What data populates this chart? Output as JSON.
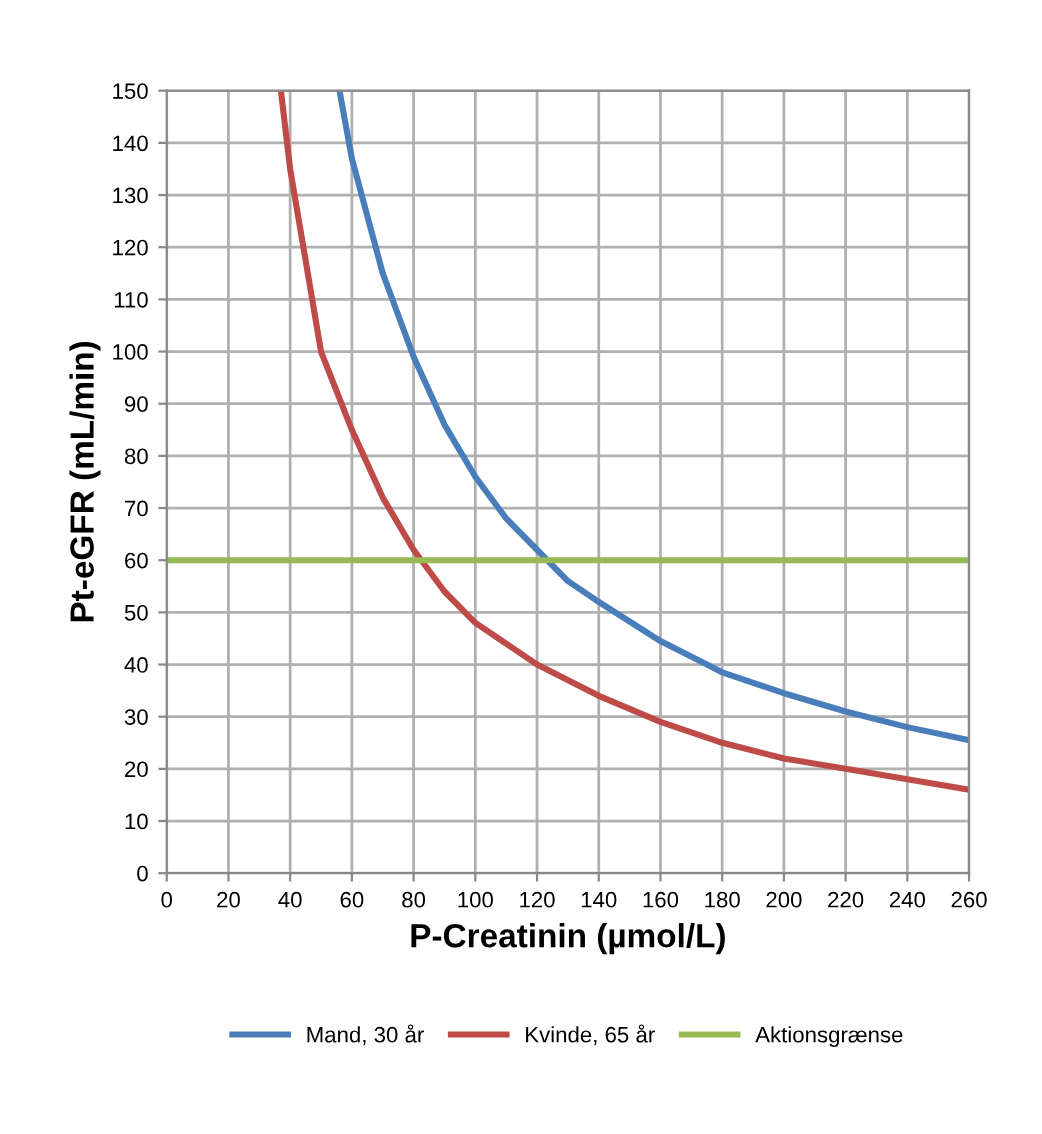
{
  "chart_data": {
    "type": "line",
    "xlabel": "P-Creatinin (µmol/L)",
    "ylabel": "Pt-eGFR (mL/min)",
    "xlim": [
      0,
      260
    ],
    "xticks": [
      0,
      20,
      40,
      60,
      80,
      100,
      120,
      140,
      160,
      180,
      200,
      220,
      240,
      260
    ],
    "ylim": [
      0,
      150
    ],
    "yticks": [
      0,
      10,
      20,
      30,
      40,
      50,
      60,
      70,
      80,
      90,
      100,
      110,
      120,
      130,
      140,
      150
    ],
    "grid": true,
    "legend": "bottom",
    "marker": "none",
    "line_style": "solid",
    "series": [
      {
        "name": "Mand, 30 år",
        "color": "#4a7ebb",
        "x": [
          56,
          60,
          70,
          80,
          90,
          100,
          110,
          120,
          130,
          140,
          160,
          180,
          200,
          220,
          240,
          260
        ],
        "values": [
          150,
          137,
          115,
          99,
          86,
          76,
          68,
          62,
          56,
          52,
          44.5,
          38.5,
          34.5,
          31,
          28,
          25.5
        ]
      },
      {
        "name": "Kvinde, 65 år",
        "color": "#be4b48",
        "x": [
          37,
          40,
          50,
          60,
          70,
          80,
          90,
          100,
          120,
          140,
          160,
          180,
          200,
          220,
          240,
          260
        ],
        "values": [
          150,
          135,
          100,
          85,
          72,
          62,
          54,
          48,
          40,
          34,
          29,
          25,
          22,
          20,
          18,
          16
        ]
      },
      {
        "name": "Aktionsgrænse",
        "color": "#98b954",
        "x": [
          0,
          260
        ],
        "values": [
          60,
          60
        ]
      }
    ]
  }
}
